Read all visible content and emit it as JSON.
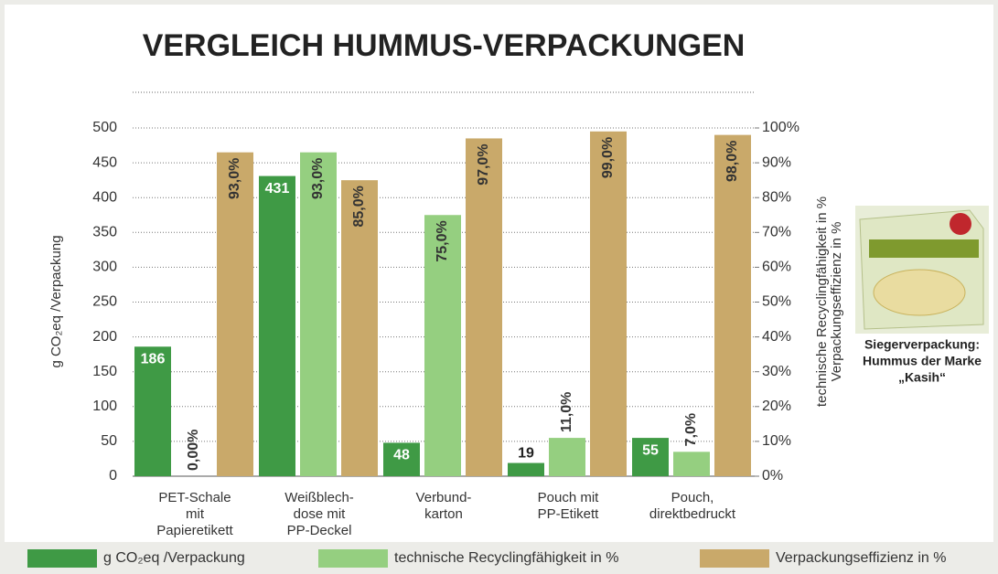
{
  "chart_data": {
    "type": "bar",
    "title": "VERGLEICH HUMMUS-VERPACKUNGEN",
    "ylabel": "g CO₂eq /Verpackung",
    "y2label": [
      "technische Recyclingfähigkeit in %",
      "Verpackungseffizienz in %"
    ],
    "categories": [
      [
        "PET-Schale",
        "mit",
        "Papieretikett"
      ],
      [
        "Weißblech-",
        "dose mit",
        "PP-Deckel"
      ],
      [
        "Verbund-",
        "karton"
      ],
      [
        "Pouch mit",
        "PP-Etikett"
      ],
      [
        "Pouch,",
        "direktbedruckt"
      ]
    ],
    "series": [
      {
        "name": "g CO₂eq /Verpackung",
        "color": "#3f9a45",
        "values": [
          186,
          431,
          48,
          19,
          55
        ]
      },
      {
        "name": "technische Recyclingfähigkeit in %",
        "color": "#95cf80",
        "axis": "y2",
        "values": [
          0,
          93,
          75,
          11,
          7
        ],
        "value_labels": [
          "0,00%",
          "93,0%",
          "75,0%",
          "11,0%",
          "7,0%"
        ]
      },
      {
        "name": "Verpackungseffizienz in %",
        "color": "#c9a96a",
        "axis": "y2",
        "values": [
          93,
          85,
          97,
          99,
          98
        ],
        "value_labels": [
          "93,0%",
          "85,0%",
          "97,0%",
          "99,0%",
          "98,0%"
        ]
      }
    ],
    "ylim": [
      0,
      500
    ],
    "yticks": [
      0,
      50,
      100,
      150,
      200,
      250,
      300,
      350,
      400,
      450,
      500
    ],
    "y2lim": [
      0,
      100
    ],
    "y2ticks": [
      {
        "value": 0,
        "label": "0%"
      },
      {
        "value": 10,
        "label": "10%"
      },
      {
        "value": 20,
        "label": "20%"
      },
      {
        "value": 30,
        "label": "30%"
      },
      {
        "value": 40,
        "label": "40%"
      },
      {
        "value": 50,
        "label": "50%"
      },
      {
        "value": 60,
        "label": "60%"
      },
      {
        "value": 70,
        "label": "70%"
      },
      {
        "value": 80,
        "label": "80%"
      },
      {
        "value": 90,
        "label": "90%"
      },
      {
        "value": 100,
        "label": "100%"
      }
    ],
    "grid": true,
    "annotation": [
      "Siegerverpackung:",
      "Hummus der Marke",
      "„Kasih“"
    ]
  }
}
